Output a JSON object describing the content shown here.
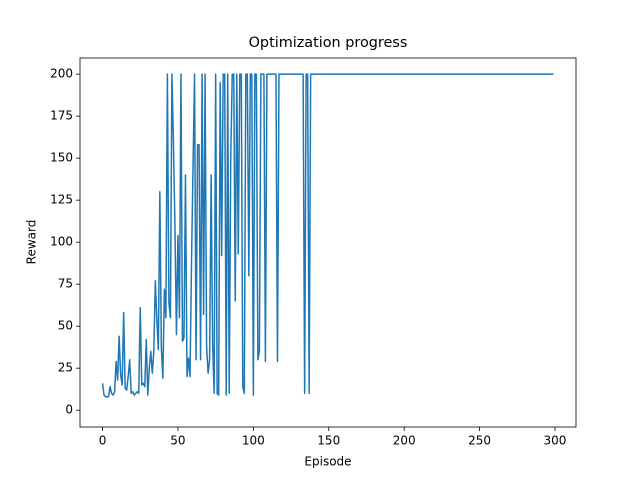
{
  "chart_data": {
    "type": "line",
    "title": "Optimization progress",
    "x_label": "Episode",
    "y_label": "Reward",
    "xlim": [
      -14.95,
      313.95
    ],
    "ylim": [
      -10,
      209.6
    ],
    "xticks": [
      0,
      50,
      100,
      150,
      200,
      250,
      300
    ],
    "yticks": [
      0,
      25,
      50,
      75,
      100,
      125,
      150,
      175,
      200
    ],
    "x": [
      0,
      1,
      2,
      3,
      4,
      5,
      6,
      7,
      8,
      9,
      10,
      11,
      12,
      13,
      14,
      15,
      16,
      17,
      18,
      19,
      20,
      21,
      22,
      23,
      24,
      25,
      26,
      27,
      28,
      29,
      30,
      31,
      32,
      33,
      34,
      35,
      36,
      37,
      38,
      39,
      40,
      41,
      42,
      43,
      44,
      45,
      46,
      47,
      48,
      49,
      50,
      51,
      52,
      53,
      54,
      55,
      56,
      57,
      58,
      59,
      60,
      61,
      62,
      63,
      64,
      65,
      66,
      67,
      68,
      69,
      70,
      71,
      72,
      73,
      74,
      75,
      76,
      77,
      78,
      79,
      80,
      81,
      82,
      83,
      84,
      85,
      86,
      87,
      88,
      89,
      90,
      91,
      92,
      93,
      94,
      95,
      96,
      97,
      98,
      99,
      100,
      101,
      102,
      103,
      104,
      105,
      106,
      107,
      108,
      109,
      110,
      111,
      112,
      113,
      114,
      115,
      116,
      117,
      118,
      119,
      120,
      121,
      122,
      123,
      124,
      125,
      126,
      127,
      128,
      129,
      130,
      131,
      132,
      133,
      134,
      135,
      136,
      137,
      138,
      139,
      140,
      141,
      142,
      143,
      144,
      145,
      146,
      147,
      148,
      149,
      150,
      151,
      152,
      153,
      154,
      155,
      156,
      157,
      158,
      159,
      160,
      161,
      162,
      163,
      164,
      165,
      166,
      167,
      168,
      169,
      170,
      171,
      172,
      173,
      174,
      175,
      176,
      177,
      178,
      179,
      180,
      181,
      182,
      183,
      184,
      185,
      186,
      187,
      188,
      189,
      190,
      191,
      192,
      193,
      194,
      195,
      196,
      197,
      198,
      199,
      200,
      201,
      202,
      203,
      204,
      205,
      206,
      207,
      208,
      209,
      210,
      211,
      212,
      213,
      214,
      215,
      216,
      217,
      218,
      219,
      220,
      221,
      222,
      223,
      224,
      225,
      226,
      227,
      228,
      229,
      230,
      231,
      232,
      233,
      234,
      235,
      236,
      237,
      238,
      239,
      240,
      241,
      242,
      243,
      244,
      245,
      246,
      247,
      248,
      249,
      250,
      251,
      252,
      253,
      254,
      255,
      256,
      257,
      258,
      259,
      260,
      261,
      262,
      263,
      264,
      265,
      266,
      267,
      268,
      269,
      270,
      271,
      272,
      273,
      274,
      275,
      276,
      277,
      278,
      279,
      280,
      281,
      282,
      283,
      284,
      285,
      286,
      287,
      288,
      289,
      290,
      291,
      292,
      293,
      294,
      295,
      296,
      297,
      298,
      299
    ],
    "series": [
      {
        "color": "#1f77b4",
        "values": [
          16,
          9,
          8,
          8,
          8,
          14,
          10,
          9,
          11,
          29,
          18,
          44,
          21,
          15,
          58,
          13,
          12,
          20,
          30,
          10,
          11,
          9,
          10,
          11,
          10,
          61,
          15,
          16,
          14,
          42,
          9,
          25,
          35,
          22,
          35,
          77,
          54,
          36,
          130,
          37,
          19,
          72,
          55,
          200,
          64,
          55,
          200,
          160,
          110,
          45,
          104,
          55,
          200,
          41,
          43,
          140,
          20,
          31,
          20,
          88,
          145,
          200,
          30,
          158,
          158,
          30,
          200,
          57,
          200,
          38,
          22,
          30,
          140,
          40,
          10,
          200,
          10,
          9,
          195,
          92,
          200,
          200,
          9,
          200,
          10,
          149,
          200,
          200,
          65,
          200,
          93,
          200,
          200,
          14,
          10,
          200,
          200,
          80,
          200,
          200,
          9,
          200,
          200,
          30,
          35,
          200,
          200,
          200,
          29,
          200,
          200,
          200,
          200,
          200,
          200,
          200,
          29,
          200,
          200,
          200,
          200,
          200,
          200,
          200,
          200,
          200,
          200,
          200,
          200,
          200,
          200,
          200,
          200,
          200,
          10,
          200,
          200,
          10,
          200,
          200,
          200,
          200,
          200,
          200,
          200,
          200,
          200,
          200,
          200,
          200,
          200,
          200,
          200,
          200,
          200,
          200,
          200,
          200,
          200,
          200,
          200,
          200,
          200,
          200,
          200,
          200,
          200,
          200,
          200,
          200,
          200,
          200,
          200,
          200,
          200,
          200,
          200,
          200,
          200,
          200,
          200,
          200,
          200,
          200,
          200,
          200,
          200,
          200,
          200,
          200,
          200,
          200,
          200,
          200,
          200,
          200,
          200,
          200,
          200,
          200,
          200,
          200,
          200,
          200,
          200,
          200,
          200,
          200,
          200,
          200,
          200,
          200,
          200,
          200,
          200,
          200,
          200,
          200,
          200,
          200,
          200,
          200,
          200,
          200,
          200,
          200,
          200,
          200,
          200,
          200,
          200,
          200,
          200,
          200,
          200,
          200,
          200,
          200,
          200,
          200,
          200,
          200,
          200,
          200,
          200,
          200,
          200,
          200,
          200,
          200,
          200,
          200,
          200,
          200,
          200,
          200,
          200,
          200,
          200,
          200,
          200,
          200,
          200,
          200,
          200,
          200,
          200,
          200,
          200,
          200,
          200,
          200,
          200,
          200,
          200,
          200,
          200,
          200,
          200,
          200,
          200,
          200,
          200,
          200,
          200,
          200,
          200,
          200,
          200,
          200,
          200,
          200,
          200,
          200,
          200,
          200,
          200,
          200,
          200,
          200
        ]
      }
    ]
  }
}
